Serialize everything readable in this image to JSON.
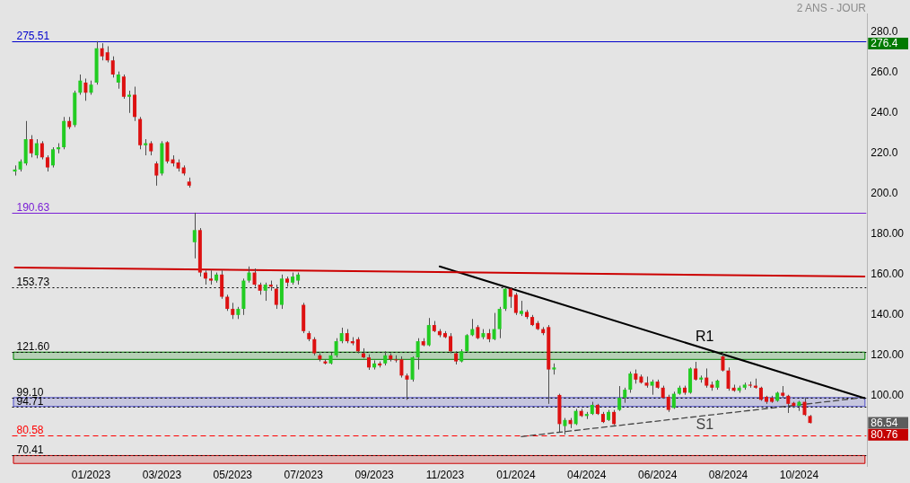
{
  "chart_data": {
    "type": "candlestick",
    "title": "2 ANS - JOUR",
    "categories": [
      null,
      null,
      null,
      null,
      null,
      null,
      null,
      null,
      null,
      null,
      null,
      null,
      null,
      null,
      "01/2023",
      null,
      null,
      null,
      null,
      null,
      null,
      null,
      null,
      null,
      null,
      null,
      null,
      "03/2023",
      null,
      null,
      null,
      null,
      null,
      null,
      null,
      null,
      null,
      null,
      null,
      null,
      "05/2023",
      null,
      null,
      null,
      null,
      null,
      null,
      null,
      null,
      null,
      null,
      null,
      null,
      "07/2023",
      null,
      null,
      null,
      null,
      null,
      null,
      null,
      null,
      null,
      null,
      null,
      null,
      "09/2023",
      null,
      null,
      null,
      null,
      null,
      null,
      null,
      null,
      null,
      null,
      null,
      null,
      "11/2023",
      null,
      null,
      null,
      null,
      null,
      null,
      null,
      null,
      null,
      null,
      null,
      null,
      "01/2024",
      null,
      null,
      null,
      null,
      null,
      null,
      null,
      null,
      null,
      null,
      null,
      null,
      "04/2024",
      null,
      null,
      null,
      null,
      null,
      null,
      null,
      null,
      null,
      null,
      null,
      null,
      "06/2024",
      null,
      null,
      null,
      null,
      null,
      null,
      null,
      null,
      null,
      null,
      null,
      null,
      "08/2024",
      null,
      null,
      null,
      null,
      null,
      null,
      null,
      null,
      null,
      null,
      null,
      null,
      "10/2024",
      null,
      null,
      null,
      null,
      null,
      null,
      null,
      null,
      null,
      null,
      null,
      null
    ],
    "ohlc": [
      [
        211,
        214,
        209,
        212
      ],
      [
        212,
        217,
        211,
        216
      ],
      [
        215,
        236,
        214,
        227
      ],
      [
        227,
        229,
        218,
        220
      ],
      [
        219,
        227,
        217.5,
        225
      ],
      [
        225,
        226,
        217,
        218
      ],
      [
        218,
        219,
        211,
        213
      ],
      [
        214,
        223,
        213,
        222
      ],
      [
        222,
        225,
        220,
        223
      ],
      [
        223,
        238,
        222,
        236
      ],
      [
        236,
        238,
        232,
        233
      ],
      [
        234,
        251,
        233,
        250
      ],
      [
        250,
        259,
        249,
        256
      ],
      [
        255,
        257,
        246,
        250
      ],
      [
        250,
        256,
        249,
        254
      ],
      [
        255,
        275.51,
        254,
        272
      ],
      [
        272,
        274.5,
        266,
        268
      ],
      [
        270,
        273,
        265,
        266
      ],
      [
        266,
        268,
        257.5,
        259
      ],
      [
        255,
        260.5,
        252,
        259
      ],
      [
        258,
        259,
        247,
        248
      ],
      [
        248,
        251,
        240,
        249
      ],
      [
        249,
        253,
        236,
        238
      ],
      [
        237,
        238,
        222,
        224
      ],
      [
        224,
        227,
        219,
        225
      ],
      [
        225,
        226,
        219,
        221
      ],
      [
        215,
        216,
        204,
        209
      ],
      [
        210,
        226,
        209,
        225
      ],
      [
        225.5,
        226,
        215,
        216
      ],
      [
        217,
        219,
        213.5,
        215
      ],
      [
        215.5,
        217,
        211,
        212.5
      ],
      [
        213,
        214,
        209,
        210
      ],
      [
        206,
        208,
        203,
        204
      ],
      [
        176,
        190.63,
        168,
        182
      ],
      [
        182,
        183,
        159,
        161
      ],
      [
        161,
        162,
        155,
        158
      ],
      [
        158,
        162,
        155,
        157
      ],
      [
        157,
        161,
        156,
        160
      ],
      [
        160,
        162,
        148,
        149
      ],
      [
        149,
        150,
        142,
        143
      ],
      [
        143,
        146,
        138,
        140
      ],
      [
        140,
        144,
        138,
        143
      ],
      [
        143,
        158,
        140,
        157
      ],
      [
        157,
        164,
        156,
        161
      ],
      [
        161,
        163,
        154,
        155
      ],
      [
        155,
        156,
        150,
        152
      ],
      [
        152,
        156,
        147,
        155
      ],
      [
        155,
        157,
        152,
        154
      ],
      [
        153,
        155,
        143,
        145
      ],
      [
        145,
        160,
        143,
        158
      ],
      [
        158,
        159,
        154,
        156
      ],
      [
        156,
        161,
        155,
        159
      ],
      [
        157,
        161,
        155,
        160
      ],
      [
        145,
        146,
        131,
        132
      ],
      [
        131,
        132,
        127,
        128
      ],
      [
        128,
        129,
        120,
        121
      ],
      [
        120,
        121,
        117,
        118
      ],
      [
        117,
        118,
        115.5,
        116
      ],
      [
        116,
        121.5,
        115.5,
        120
      ],
      [
        120,
        128.5,
        119,
        127
      ],
      [
        127,
        133.7,
        126,
        131
      ],
      [
        131,
        133,
        126,
        127
      ],
      [
        127,
        129,
        125,
        126
      ],
      [
        128,
        129,
        121,
        122
      ],
      [
        121,
        123.5,
        118.5,
        119
      ],
      [
        119,
        120.5,
        112.8,
        114
      ],
      [
        114,
        117.5,
        113,
        116
      ],
      [
        116,
        117,
        114,
        115
      ],
      [
        116,
        122,
        115,
        120
      ],
      [
        120,
        121,
        117,
        118
      ],
      [
        118,
        120,
        116.5,
        117.5
      ],
      [
        118,
        119.5,
        109,
        110
      ],
      [
        110,
        111,
        98,
        108
      ],
      [
        108,
        119.5,
        107,
        119
      ],
      [
        119,
        128.5,
        113,
        127
      ],
      [
        127,
        128.5,
        124.5,
        125
      ],
      [
        125,
        138.5,
        124.5,
        135
      ],
      [
        135,
        137,
        131.5,
        132
      ],
      [
        132,
        133,
        129,
        130
      ],
      [
        131,
        132,
        128.5,
        129
      ],
      [
        129.5,
        131,
        121,
        122
      ],
      [
        121,
        122,
        115.5,
        117
      ],
      [
        117,
        123,
        116.5,
        122
      ],
      [
        122,
        130.5,
        121.5,
        130
      ],
      [
        130,
        138,
        129.5,
        133
      ],
      [
        134,
        135,
        128,
        128.5
      ],
      [
        129,
        133,
        128,
        131
      ],
      [
        131,
        133,
        126.5,
        128
      ],
      [
        128,
        141,
        127.5,
        133
      ],
      [
        133,
        144,
        128.5,
        143
      ],
      [
        143,
        153.73,
        142,
        153
      ],
      [
        153,
        153.5,
        143.5,
        149
      ],
      [
        150,
        151,
        140,
        141
      ],
      [
        140.5,
        147,
        139.5,
        142
      ],
      [
        141.5,
        142.5,
        138,
        139
      ],
      [
        139,
        140,
        134.5,
        135
      ],
      [
        136,
        137,
        132.5,
        133
      ],
      [
        133,
        134,
        130,
        131
      ],
      [
        134,
        135,
        96,
        113
      ],
      [
        113,
        116,
        110.5,
        114
      ],
      [
        100.4,
        101,
        82,
        86
      ],
      [
        85,
        89,
        80.8,
        88
      ],
      [
        88,
        89,
        84,
        86
      ],
      [
        86,
        93.5,
        85.5,
        92.5
      ],
      [
        92.5,
        93.5,
        89.5,
        90
      ],
      [
        90,
        92,
        88.5,
        91
      ],
      [
        91,
        97,
        90.5,
        95.5
      ],
      [
        95.5,
        96,
        90.5,
        91
      ],
      [
        91,
        92,
        86.5,
        87
      ],
      [
        88,
        93,
        87.5,
        92
      ],
      [
        92,
        93,
        85.5,
        86
      ],
      [
        93,
        104.8,
        92.5,
        99
      ],
      [
        99,
        104,
        96.5,
        103
      ],
      [
        103,
        112,
        101.5,
        111
      ],
      [
        111,
        113,
        106,
        108
      ],
      [
        109.5,
        110.5,
        106,
        106.5
      ],
      [
        106.5,
        109.5,
        104,
        105
      ],
      [
        105,
        108,
        100.5,
        107
      ],
      [
        107,
        108,
        103.5,
        104
      ],
      [
        104,
        105,
        98.5,
        99
      ],
      [
        99.5,
        100.5,
        92,
        93
      ],
      [
        94,
        102,
        93.5,
        101
      ],
      [
        101,
        105,
        100.5,
        104
      ],
      [
        104,
        105,
        100.5,
        101.5
      ],
      [
        101.5,
        114,
        101,
        113.5
      ],
      [
        113.5,
        116.8,
        107.5,
        108
      ],
      [
        108,
        110,
        106.5,
        109
      ],
      [
        109,
        113.5,
        104,
        105
      ],
      [
        105.5,
        107,
        102.5,
        104
      ],
      [
        104,
        108,
        103,
        107.5
      ],
      [
        119.5,
        121.3,
        112,
        112.5
      ],
      [
        112.5,
        114,
        102.5,
        103.5
      ],
      [
        104,
        105.5,
        102,
        102.5
      ],
      [
        102.5,
        105,
        101.5,
        104
      ],
      [
        104,
        106.5,
        103,
        105.5
      ],
      [
        105.5,
        107,
        104,
        105
      ],
      [
        105,
        108.5,
        103.5,
        104
      ],
      [
        104,
        104.5,
        97.5,
        98
      ],
      [
        99.5,
        100,
        96,
        97
      ],
      [
        99,
        100,
        96.5,
        97
      ],
      [
        97.5,
        102,
        97,
        101.5
      ],
      [
        101.5,
        104.8,
        99,
        100
      ],
      [
        100,
        100.5,
        91.5,
        96
      ],
      [
        96.5,
        97,
        94,
        95
      ],
      [
        95,
        97.5,
        92.5,
        97
      ],
      [
        97,
        99,
        90,
        90.5
      ],
      [
        90,
        90.5,
        86.3,
        86.54
      ],
      null,
      null,
      null,
      null,
      null,
      null,
      null,
      null,
      null,
      null
    ],
    "colors": [
      "#22cc22",
      "#22cc22",
      "#22cc22",
      "#dd1111",
      "#22cc22",
      "#dd1111",
      "#dd1111",
      "#22cc22",
      "#22cc22",
      "#22cc22",
      "#dd1111",
      "#22cc22",
      "#22cc22",
      "#dd1111",
      "#22cc22",
      "#22cc22",
      "#dd1111",
      "#dd1111",
      "#dd1111",
      "#22cc22",
      "#dd1111",
      "#22cc22",
      "#dd1111",
      "#dd1111",
      "#22cc22",
      "#dd1111",
      "#dd1111",
      "#22cc22",
      "#dd1111",
      "#dd1111",
      "#dd1111",
      "#dd1111",
      "#dd1111",
      "#22cc22",
      "#dd1111",
      "#dd1111",
      "#dd1111",
      "#22cc22",
      "#dd1111",
      "#dd1111",
      "#dd1111",
      "#22cc22",
      "#22cc22",
      "#22cc22",
      "#dd1111",
      "#dd1111",
      "#22cc22",
      "#dd1111",
      "#dd1111",
      "#22cc22",
      "#dd1111",
      "#22cc22",
      "#22cc22",
      "#dd1111",
      "#dd1111",
      "#dd1111",
      "#dd1111",
      "#dd1111",
      "#22cc22",
      "#22cc22",
      "#22cc22",
      "#dd1111",
      "#dd1111",
      "#dd1111",
      "#dd1111",
      "#dd1111",
      "#22cc22",
      "#dd1111",
      "#22cc22",
      "#dd1111",
      "#dd1111",
      "#dd1111",
      "#dd1111",
      "#22cc22",
      "#22cc22",
      "#dd1111",
      "#22cc22",
      "#dd1111",
      "#dd1111",
      "#dd1111",
      "#dd1111",
      "#dd1111",
      "#22cc22",
      "#22cc22",
      "#22cc22",
      "#dd1111",
      "#22cc22",
      "#dd1111",
      "#22cc22",
      "#22cc22",
      "#22cc22",
      "#dd1111",
      "#dd1111",
      "#22cc22",
      "#dd1111",
      "#dd1111",
      "#dd1111",
      "#dd1111",
      "#dd1111",
      "#22cc22",
      "#dd1111",
      "#22cc22",
      "#dd1111",
      "#22cc22",
      "#dd1111",
      "#22cc22",
      "#22cc22",
      "#dd1111",
      "#dd1111",
      "#22cc22",
      "#dd1111",
      "#22cc22",
      "#22cc22",
      "#22cc22",
      "#dd1111",
      "#dd1111",
      "#dd1111",
      "#22cc22",
      "#dd1111",
      "#dd1111",
      "#dd1111",
      "#22cc22",
      "#22cc22",
      "#dd1111",
      "#22cc22",
      "#dd1111",
      "#22cc22",
      "#dd1111",
      "#dd1111",
      "#22cc22",
      "#dd1111",
      "#dd1111",
      "#dd1111",
      "#22cc22",
      "#22cc22",
      "#dd1111",
      "#dd1111",
      "#dd1111",
      "#dd1111",
      "#dd1111",
      "#22cc22",
      "#dd1111",
      "#dd1111",
      "#dd1111",
      "#22cc22",
      "#dd1111",
      "#dd1111",
      null,
      null,
      null,
      null,
      null,
      null,
      null,
      null,
      null,
      null
    ],
    "series": [
      {
        "type": "line",
        "color": "#cc0000",
        "line_style": "solid",
        "values": [
          163.5,
          null,
          null,
          null,
          null,
          null,
          null,
          null,
          null,
          null,
          null,
          null,
          null,
          null,
          null,
          null,
          null,
          null,
          null,
          null,
          null,
          null,
          null,
          null,
          null,
          null,
          null,
          null,
          null,
          null,
          null,
          null,
          null,
          null,
          null,
          null,
          null,
          null,
          null,
          null,
          null,
          null,
          null,
          null,
          null,
          null,
          null,
          null,
          null,
          null,
          null,
          null,
          null,
          null,
          null,
          null,
          null,
          null,
          null,
          null,
          null,
          null,
          null,
          null,
          null,
          null,
          null,
          null,
          null,
          null,
          null,
          null,
          null,
          null,
          null,
          null,
          null,
          null,
          null,
          null,
          null,
          null,
          null,
          null,
          null,
          null,
          null,
          null,
          null,
          null,
          null,
          null,
          null,
          null,
          null,
          null,
          null,
          null,
          null,
          null,
          null,
          null,
          null,
          null,
          null,
          null,
          null,
          null,
          null,
          null,
          null,
          null,
          null,
          null,
          null,
          null,
          null,
          null,
          null,
          null,
          null,
          null,
          null,
          null,
          null,
          null,
          null,
          null,
          null,
          null,
          null,
          null,
          null,
          null,
          null,
          null,
          null,
          null,
          null,
          null,
          null,
          null,
          null,
          null,
          null,
          null,
          null,
          null,
          null,
          null,
          null,
          null,
          null,
          null,
          null,
          null,
          159
        ]
      },
      {
        "type": "line",
        "name": "R1",
        "color": "#000000",
        "line_style": "solid",
        "values": [
          null,
          null,
          null,
          null,
          null,
          null,
          null,
          null,
          null,
          null,
          null,
          null,
          null,
          null,
          null,
          null,
          null,
          null,
          null,
          null,
          null,
          null,
          null,
          null,
          null,
          null,
          null,
          null,
          null,
          null,
          null,
          null,
          null,
          null,
          null,
          null,
          null,
          null,
          null,
          null,
          null,
          null,
          null,
          null,
          null,
          null,
          null,
          null,
          null,
          null,
          null,
          null,
          null,
          null,
          null,
          null,
          null,
          null,
          null,
          null,
          null,
          null,
          null,
          null,
          null,
          null,
          null,
          null,
          null,
          null,
          null,
          null,
          null,
          null,
          null,
          null,
          null,
          null,
          164,
          null,
          null,
          null,
          null,
          null,
          null,
          null,
          null,
          null,
          null,
          null,
          null,
          null,
          null,
          null,
          null,
          null,
          null,
          null,
          null,
          null,
          null,
          null,
          null,
          null,
          null,
          null,
          null,
          null,
          null,
          null,
          null,
          null,
          null,
          null,
          null,
          null,
          null,
          null,
          null,
          null,
          null,
          null,
          null,
          null,
          null,
          null,
          null,
          null,
          null,
          null,
          null,
          null,
          null,
          null,
          null,
          null,
          null,
          null,
          null,
          null,
          null,
          null,
          null,
          null,
          null,
          null,
          null,
          null,
          null,
          null,
          null,
          null,
          null,
          null,
          null,
          null,
          98.8
        ]
      },
      {
        "type": "line",
        "name": "S1",
        "color": "#444444",
        "line_style": "dashed",
        "values": [
          null,
          null,
          null,
          null,
          null,
          null,
          null,
          null,
          null,
          null,
          null,
          null,
          null,
          null,
          null,
          null,
          null,
          null,
          null,
          null,
          null,
          null,
          null,
          null,
          null,
          null,
          null,
          null,
          null,
          null,
          null,
          null,
          null,
          null,
          null,
          null,
          null,
          null,
          null,
          null,
          null,
          null,
          null,
          null,
          null,
          null,
          null,
          null,
          null,
          null,
          null,
          null,
          null,
          null,
          null,
          null,
          null,
          null,
          null,
          null,
          null,
          null,
          null,
          null,
          null,
          null,
          null,
          null,
          null,
          null,
          null,
          null,
          null,
          null,
          null,
          null,
          null,
          null,
          null,
          null,
          null,
          null,
          null,
          null,
          null,
          null,
          null,
          null,
          null,
          null,
          null,
          null,
          null,
          79.8,
          null,
          null,
          null,
          null,
          null,
          null,
          null,
          null,
          null,
          null,
          null,
          null,
          null,
          null,
          null,
          null,
          null,
          null,
          null,
          null,
          null,
          null,
          null,
          null,
          null,
          null,
          null,
          null,
          null,
          null,
          null,
          null,
          null,
          null,
          null,
          null,
          null,
          null,
          null,
          null,
          null,
          null,
          null,
          null,
          null,
          null,
          null,
          null,
          null,
          null,
          null,
          null,
          null,
          null,
          null,
          null,
          null,
          null,
          null,
          null,
          null,
          null,
          99.2
        ]
      }
    ],
    "ylim": [
      65,
      289
    ],
    "yticks": [
      {
        "value": 100,
        "label": "100.00"
      },
      {
        "value": 120,
        "label": "120.00"
      },
      {
        "value": 140,
        "label": "140.00"
      },
      {
        "value": 160,
        "label": "160.00"
      },
      {
        "value": 180,
        "label": "180.00"
      },
      {
        "value": 200,
        "label": "200.0"
      },
      {
        "value": 220,
        "label": "220.0"
      },
      {
        "value": 240,
        "label": "240.0"
      },
      {
        "value": 260,
        "label": "260.0"
      },
      {
        "value": 280,
        "label": "280.0"
      }
    ],
    "ref_lines": [
      {
        "axis": "y",
        "value": 275.51,
        "label": "275.51",
        "color": "#0000cc",
        "line_style": "solid"
      },
      {
        "axis": "y",
        "value": 190.63,
        "label": "190.63",
        "color": "#7a1fd6",
        "line_style": "solid"
      },
      {
        "axis": "y",
        "value": 153.73,
        "label": "153.73",
        "color": "#000000",
        "line_style": "dotted"
      },
      {
        "axis": "y",
        "value": 121.6,
        "label": "121.60",
        "color": "#000000",
        "line_style": "dotted"
      },
      {
        "axis": "y",
        "value": 99.1,
        "label": "99.10",
        "color": "#000000",
        "line_style": "dotted"
      },
      {
        "axis": "y",
        "value": 94.71,
        "label": "94.71",
        "color": "#000000",
        "line_style": "dotted"
      },
      {
        "axis": "y",
        "value": 80.58,
        "label": "80.58",
        "color": "#ff0000",
        "line_style": "dashed"
      },
      {
        "axis": "y",
        "value": 70.41,
        "label": "70.41",
        "color": "#000000",
        "line_style": "dotted"
      }
    ],
    "bands": [
      {
        "axis": "y",
        "from": 118,
        "to": 121.6,
        "color": "#008000"
      },
      {
        "axis": "y",
        "from": 94.71,
        "to": 99.1,
        "color": "#5050c8"
      },
      {
        "axis": "y",
        "from": 66.5,
        "to": 70.41,
        "color": "#cc0000"
      }
    ],
    "annotations": [
      "276.4",
      "86.54",
      "80.76"
    ]
  }
}
